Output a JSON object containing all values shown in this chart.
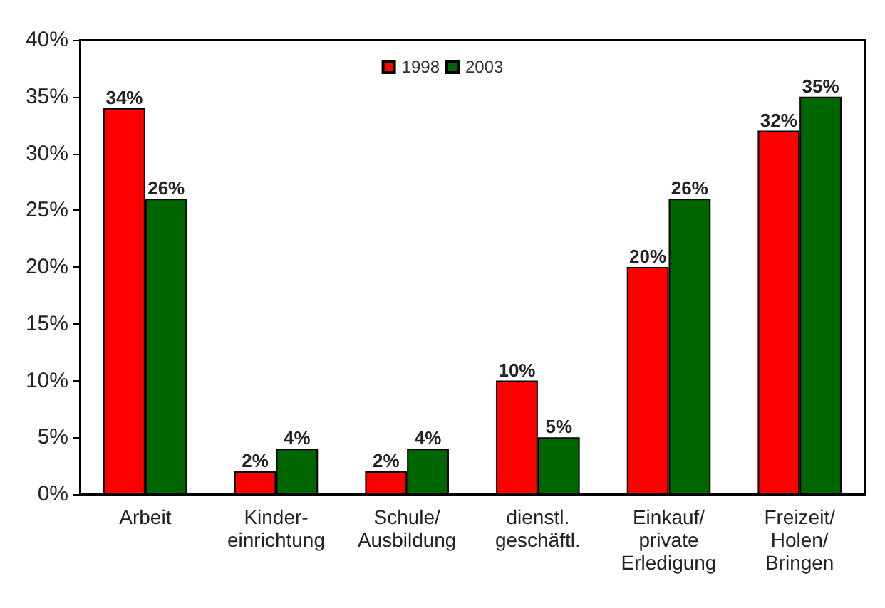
{
  "chart_data": {
    "type": "bar",
    "categories": [
      "Arbeit",
      "Kinder-\neinrichtung",
      "Schule/\nAusbildung",
      "dienstl.\ngeschäftl.",
      "Einkauf/\nprivate\nErledigung",
      "Freizeit/\nHolen/\nBringen"
    ],
    "series": [
      {
        "name": "1998",
        "color": "#ff0000",
        "values": [
          34,
          2,
          2,
          10,
          20,
          32
        ],
        "value_labels": [
          "34%",
          "2%",
          "2%",
          "10%",
          "20%",
          "32%"
        ]
      },
      {
        "name": "2003",
        "color": "#006600",
        "values": [
          26,
          4,
          4,
          5,
          26,
          35
        ],
        "value_labels": [
          "26%",
          "4%",
          "4%",
          "5%",
          "26%",
          "35%"
        ]
      }
    ],
    "ylim": [
      0,
      40
    ],
    "yticks": [
      {
        "value": 0,
        "label": "0%"
      },
      {
        "value": 5,
        "label": "5%"
      },
      {
        "value": 10,
        "label": "10%"
      },
      {
        "value": 15,
        "label": "15%"
      },
      {
        "value": 20,
        "label": "20%"
      },
      {
        "value": 25,
        "label": "25%"
      },
      {
        "value": 30,
        "label": "30%"
      },
      {
        "value": 35,
        "label": "35%"
      },
      {
        "value": 40,
        "label": "40%"
      }
    ],
    "grid": false,
    "legend": "top"
  }
}
